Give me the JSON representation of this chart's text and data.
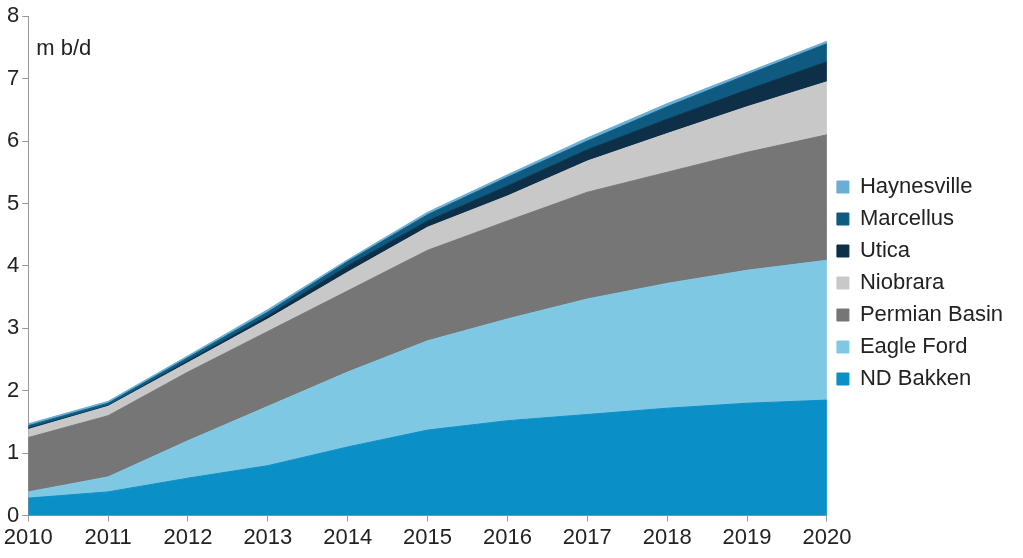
{
  "chart_data": {
    "type": "area",
    "stacked": true,
    "x": [
      2010,
      2011,
      2012,
      2013,
      2014,
      2015,
      2016,
      2017,
      2018,
      2019,
      2020
    ],
    "xlim": [
      2010,
      2020
    ],
    "xticks": [
      2010,
      2011,
      2012,
      2013,
      2014,
      2015,
      2016,
      2017,
      2018,
      2019,
      2020
    ],
    "ylim": [
      0,
      8
    ],
    "yticks": [
      0,
      1,
      2,
      3,
      4,
      5,
      6,
      7,
      8
    ],
    "grid": false,
    "legend": "right",
    "annotations": [
      "m b/d"
    ],
    "series": [
      {
        "name": "ND Bakken",
        "color": "#0a8fc7",
        "values": [
          0.28,
          0.38,
          0.6,
          0.8,
          1.1,
          1.37,
          1.52,
          1.62,
          1.72,
          1.8,
          1.85
        ]
      },
      {
        "name": "Eagle Ford",
        "color": "#7ec8e3",
        "values": [
          0.1,
          0.24,
          0.6,
          0.95,
          1.2,
          1.43,
          1.63,
          1.85,
          2.0,
          2.13,
          2.24
        ]
      },
      {
        "name": "Permian Basin",
        "color": "#767676",
        "values": [
          0.87,
          0.98,
          1.1,
          1.2,
          1.3,
          1.45,
          1.57,
          1.71,
          1.78,
          1.89,
          2.01
        ]
      },
      {
        "name": "Niobrara",
        "color": "#c8c8c8",
        "values": [
          0.13,
          0.15,
          0.15,
          0.2,
          0.3,
          0.37,
          0.4,
          0.5,
          0.62,
          0.73,
          0.85
        ]
      },
      {
        "name": "Utica",
        "color": "#0d3048",
        "values": [
          0.02,
          0.01,
          0.03,
          0.05,
          0.1,
          0.1,
          0.16,
          0.18,
          0.23,
          0.27,
          0.32
        ]
      },
      {
        "name": "Marcellus",
        "color": "#0e5a80",
        "values": [
          0.04,
          0.04,
          0.05,
          0.06,
          0.07,
          0.1,
          0.14,
          0.14,
          0.2,
          0.24,
          0.29
        ]
      },
      {
        "name": "Haynesville",
        "color": "#6aaed6",
        "values": [
          0.03,
          0.03,
          0.03,
          0.04,
          0.03,
          0.04,
          0.04,
          0.05,
          0.05,
          0.04,
          0.04
        ]
      }
    ]
  }
}
